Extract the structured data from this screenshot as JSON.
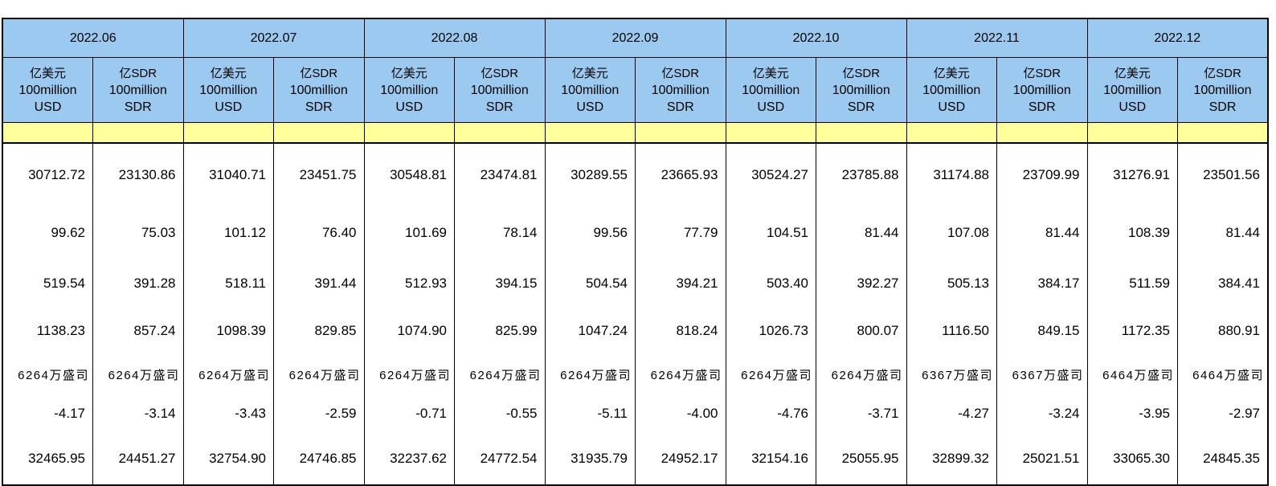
{
  "table": {
    "months": [
      {
        "label": "2022.06"
      },
      {
        "label": "2022.07"
      },
      {
        "label": "2022.08"
      },
      {
        "label": "2022.09"
      },
      {
        "label": "2022.10"
      },
      {
        "label": "2022.11"
      },
      {
        "label": "2022.12"
      }
    ],
    "unit_columns": [
      {
        "id": "usd",
        "lines": [
          "亿美元",
          "100million",
          "USD"
        ]
      },
      {
        "id": "sdr",
        "lines": [
          "亿SDR",
          "100million",
          "SDR"
        ]
      }
    ],
    "rows": [
      {
        "cells": [
          "30712.72",
          "23130.86",
          "31040.71",
          "23451.75",
          "30548.81",
          "23474.81",
          "30289.55",
          "23665.93",
          "30524.27",
          "23785.88",
          "31174.88",
          "23709.99",
          "31276.91",
          "23501.56"
        ]
      },
      {
        "cells": [
          "99.62",
          "75.03",
          "101.12",
          "76.40",
          "101.69",
          "78.14",
          "99.56",
          "77.79",
          "104.51",
          "81.44",
          "107.08",
          "81.44",
          "108.39",
          "81.44"
        ]
      },
      {
        "cells": [
          "519.54",
          "391.28",
          "518.11",
          "391.44",
          "512.93",
          "394.15",
          "504.54",
          "394.21",
          "503.40",
          "392.27",
          "505.13",
          "384.17",
          "511.59",
          "384.41"
        ]
      },
      {
        "cells": [
          "1138.23",
          "857.24",
          "1098.39",
          "829.85",
          "1074.90",
          "825.99",
          "1047.24",
          "818.24",
          "1026.73",
          "800.07",
          "1116.50",
          "849.15",
          "1172.35",
          "880.91"
        ]
      },
      {
        "cells": [
          "6264万盛司",
          "6264万盛司",
          "6264万盛司",
          "6264万盛司",
          "6264万盛司",
          "6264万盛司",
          "6264万盛司",
          "6264万盛司",
          "6264万盛司",
          "6264万盛司",
          "6367万盛司",
          "6367万盛司",
          "6464万盛司",
          "6464万盛司"
        ]
      },
      {
        "cells": [
          "-4.17",
          "-3.14",
          "-3.43",
          "-2.59",
          "-0.71",
          "-0.55",
          "-5.11",
          "-4.00",
          "-4.76",
          "-3.71",
          "-4.27",
          "-3.24",
          "-3.95",
          "-2.97"
        ]
      },
      {
        "cells": [
          "32465.95",
          "24451.27",
          "32754.90",
          "24746.85",
          "32237.62",
          "24772.54",
          "31935.79",
          "24952.17",
          "32154.16",
          "25055.95",
          "32899.32",
          "25021.51",
          "33065.30",
          "24845.35"
        ]
      }
    ]
  },
  "colors": {
    "header_blue": "#9cc9f0",
    "band_yellow": "#ffff9c",
    "border_black": "#000000"
  }
}
